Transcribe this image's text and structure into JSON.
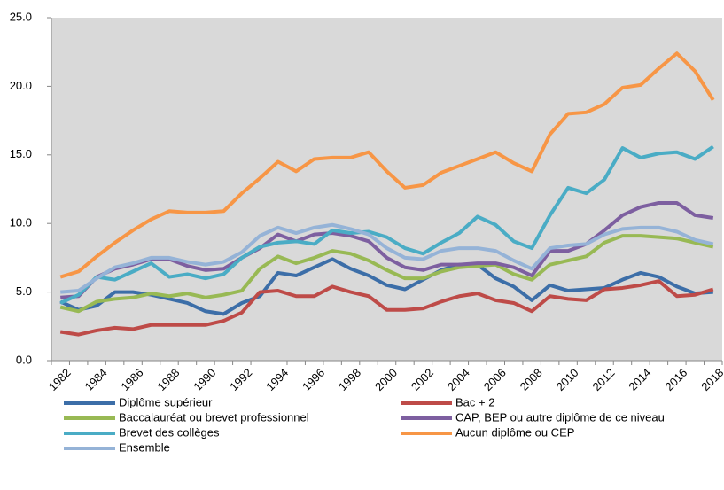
{
  "chart_data": {
    "type": "line",
    "categories": [
      "1982",
      null,
      "1984",
      null,
      "1986",
      null,
      "1988",
      null,
      "1990",
      null,
      "1992",
      null,
      "1994",
      null,
      "1996",
      null,
      "1998",
      null,
      "2000",
      null,
      "2002",
      null,
      "2004",
      null,
      "2006",
      null,
      "2008",
      null,
      "2010",
      null,
      "2012",
      null,
      "2014",
      null,
      "2016",
      null,
      "2018"
    ],
    "ylim": [
      0,
      25
    ],
    "yticks": [
      {
        "value": 0,
        "label": "0.0"
      },
      {
        "value": 5,
        "label": "5.0"
      },
      {
        "value": 10,
        "label": "10.0"
      },
      {
        "value": 15,
        "label": "15.0"
      },
      {
        "value": 20,
        "label": "20.0"
      },
      {
        "value": 25,
        "label": "25.0"
      }
    ],
    "grid": false,
    "legend": "bottom",
    "series": [
      {
        "name": "Diplôme supérieur",
        "color": "#3c6ea8",
        "values": [
          4.3,
          3.7,
          4.0,
          5.0,
          5.0,
          4.8,
          4.5,
          4.2,
          3.6,
          3.4,
          4.2,
          4.7,
          6.4,
          6.2,
          6.8,
          7.4,
          6.7,
          6.2,
          5.5,
          5.2,
          5.9,
          6.6,
          7.0,
          7.0,
          6.0,
          5.4,
          4.4,
          5.5,
          5.1,
          5.2,
          5.3,
          5.9,
          6.4,
          6.1,
          5.4,
          4.9,
          5.0
        ]
      },
      {
        "name": "Bac + 2",
        "color": "#be4b48",
        "values": [
          2.1,
          1.9,
          2.2,
          2.4,
          2.3,
          2.6,
          2.6,
          2.6,
          2.6,
          2.9,
          3.5,
          5.0,
          5.1,
          4.7,
          4.7,
          5.4,
          5.0,
          4.7,
          3.7,
          3.7,
          3.8,
          4.3,
          4.7,
          4.9,
          4.4,
          4.2,
          3.6,
          4.7,
          4.5,
          4.4,
          5.2,
          5.3,
          5.5,
          5.8,
          4.7,
          4.8,
          5.2
        ]
      },
      {
        "name": "Baccalauréat ou brevet professionnel",
        "color": "#98b954",
        "values": [
          3.9,
          3.6,
          4.3,
          4.5,
          4.6,
          4.9,
          4.7,
          4.9,
          4.6,
          4.8,
          5.1,
          6.7,
          7.6,
          7.1,
          7.5,
          8.0,
          7.8,
          7.3,
          6.6,
          6.0,
          6.0,
          6.5,
          6.8,
          6.9,
          7.0,
          6.3,
          5.9,
          7.0,
          7.3,
          7.6,
          8.6,
          9.1,
          9.1,
          9.0,
          8.9,
          8.6,
          8.3
        ]
      },
      {
        "name": "CAP, BEP ou autre diplôme de ce niveau",
        "color": "#7d5fa0",
        "values": [
          4.6,
          4.7,
          6.1,
          6.7,
          7.0,
          7.4,
          7.4,
          6.9,
          6.6,
          6.7,
          7.5,
          8.2,
          9.2,
          8.7,
          9.2,
          9.3,
          9.1,
          8.7,
          7.5,
          6.8,
          6.6,
          7.0,
          7.0,
          7.1,
          7.1,
          6.8,
          6.2,
          8.0,
          8.0,
          8.5,
          9.5,
          10.6,
          11.2,
          11.5,
          11.5,
          10.6,
          10.4
        ]
      },
      {
        "name": "Brevet des collèges",
        "color": "#4aacc5",
        "values": [
          4.2,
          4.8,
          6.1,
          5.9,
          6.5,
          7.1,
          6.1,
          6.3,
          6.0,
          6.3,
          7.5,
          8.3,
          8.6,
          8.7,
          8.5,
          9.5,
          9.3,
          9.4,
          9.0,
          8.2,
          7.8,
          8.6,
          9.3,
          10.5,
          9.9,
          8.7,
          8.2,
          10.6,
          12.6,
          12.2,
          13.2,
          15.5,
          14.8,
          15.1,
          15.2,
          14.7,
          15.6
        ]
      },
      {
        "name": "Aucun diplôme ou CEP",
        "color": "#f79646",
        "values": [
          6.1,
          6.5,
          7.6,
          8.6,
          9.5,
          10.3,
          10.9,
          10.8,
          10.8,
          10.9,
          12.2,
          13.3,
          14.5,
          13.8,
          14.7,
          14.8,
          14.8,
          15.2,
          13.8,
          12.6,
          12.8,
          13.7,
          14.2,
          14.7,
          15.2,
          14.4,
          13.8,
          16.5,
          18.0,
          18.1,
          18.7,
          19.9,
          20.1,
          21.3,
          22.4,
          21.1,
          19.0
        ]
      },
      {
        "name": "Ensemble",
        "color": "#95b3d7",
        "values": [
          5.0,
          5.1,
          6.0,
          6.8,
          7.1,
          7.5,
          7.5,
          7.2,
          7.0,
          7.2,
          7.9,
          9.1,
          9.7,
          9.3,
          9.7,
          9.9,
          9.6,
          9.2,
          8.2,
          7.5,
          7.4,
          8.0,
          8.2,
          8.2,
          8.0,
          7.3,
          6.7,
          8.2,
          8.4,
          8.5,
          9.2,
          9.6,
          9.7,
          9.7,
          9.4,
          8.8,
          8.5
        ]
      }
    ]
  }
}
